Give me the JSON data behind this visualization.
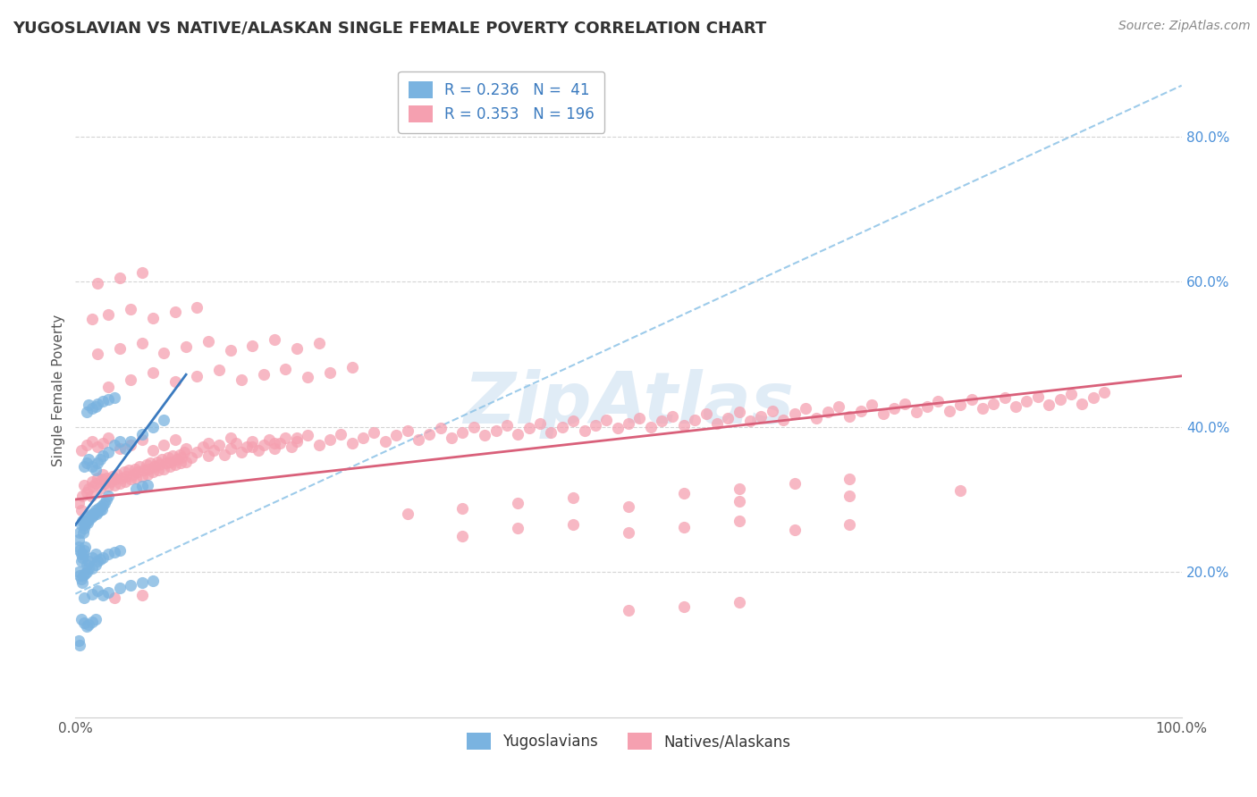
{
  "title": "YUGOSLAVIAN VS NATIVE/ALASKAN SINGLE FEMALE POVERTY CORRELATION CHART",
  "source": "Source: ZipAtlas.com",
  "ylabel": "Single Female Poverty",
  "right_ytick_vals": [
    0.2,
    0.4,
    0.6,
    0.8
  ],
  "right_ytick_labels": [
    "20.0%",
    "40.0%",
    "60.0%",
    "80.0%"
  ],
  "legend_label1": "Yugoslavians",
  "legend_label2": "Natives/Alaskans",
  "blue_color": "#7ab3e0",
  "pink_color": "#f5a0b0",
  "blue_scatter": [
    [
      0.003,
      0.245
    ],
    [
      0.004,
      0.255
    ],
    [
      0.005,
      0.265
    ],
    [
      0.006,
      0.27
    ],
    [
      0.007,
      0.255
    ],
    [
      0.008,
      0.26
    ],
    [
      0.008,
      0.27
    ],
    [
      0.009,
      0.265
    ],
    [
      0.01,
      0.27
    ],
    [
      0.01,
      0.275
    ],
    [
      0.011,
      0.268
    ],
    [
      0.012,
      0.272
    ],
    [
      0.013,
      0.278
    ],
    [
      0.014,
      0.275
    ],
    [
      0.015,
      0.28
    ],
    [
      0.016,
      0.278
    ],
    [
      0.017,
      0.282
    ],
    [
      0.018,
      0.285
    ],
    [
      0.019,
      0.28
    ],
    [
      0.02,
      0.283
    ],
    [
      0.021,
      0.288
    ],
    [
      0.022,
      0.285
    ],
    [
      0.023,
      0.29
    ],
    [
      0.024,
      0.287
    ],
    [
      0.025,
      0.292
    ],
    [
      0.026,
      0.295
    ],
    [
      0.028,
      0.3
    ],
    [
      0.03,
      0.305
    ],
    [
      0.003,
      0.235
    ],
    [
      0.004,
      0.23
    ],
    [
      0.005,
      0.225
    ],
    [
      0.005,
      0.215
    ],
    [
      0.006,
      0.22
    ],
    [
      0.007,
      0.225
    ],
    [
      0.008,
      0.23
    ],
    [
      0.009,
      0.235
    ],
    [
      0.01,
      0.21
    ],
    [
      0.012,
      0.215
    ],
    [
      0.015,
      0.22
    ],
    [
      0.018,
      0.225
    ],
    [
      0.003,
      0.2
    ],
    [
      0.004,
      0.195
    ],
    [
      0.005,
      0.19
    ],
    [
      0.006,
      0.185
    ],
    [
      0.007,
      0.195
    ],
    [
      0.009,
      0.198
    ],
    [
      0.01,
      0.2
    ],
    [
      0.012,
      0.205
    ],
    [
      0.015,
      0.205
    ],
    [
      0.018,
      0.21
    ],
    [
      0.02,
      0.215
    ],
    [
      0.022,
      0.218
    ],
    [
      0.025,
      0.22
    ],
    [
      0.03,
      0.225
    ],
    [
      0.035,
      0.228
    ],
    [
      0.04,
      0.23
    ],
    [
      0.008,
      0.345
    ],
    [
      0.01,
      0.35
    ],
    [
      0.012,
      0.355
    ],
    [
      0.015,
      0.345
    ],
    [
      0.018,
      0.34
    ],
    [
      0.02,
      0.35
    ],
    [
      0.022,
      0.355
    ],
    [
      0.025,
      0.36
    ],
    [
      0.03,
      0.365
    ],
    [
      0.035,
      0.375
    ],
    [
      0.04,
      0.38
    ],
    [
      0.045,
      0.37
    ],
    [
      0.05,
      0.38
    ],
    [
      0.06,
      0.39
    ],
    [
      0.07,
      0.4
    ],
    [
      0.08,
      0.41
    ],
    [
      0.01,
      0.42
    ],
    [
      0.012,
      0.43
    ],
    [
      0.015,
      0.425
    ],
    [
      0.018,
      0.428
    ],
    [
      0.02,
      0.432
    ],
    [
      0.025,
      0.435
    ],
    [
      0.03,
      0.438
    ],
    [
      0.035,
      0.44
    ],
    [
      0.055,
      0.315
    ],
    [
      0.06,
      0.318
    ],
    [
      0.065,
      0.32
    ],
    [
      0.008,
      0.165
    ],
    [
      0.015,
      0.17
    ],
    [
      0.02,
      0.175
    ],
    [
      0.025,
      0.168
    ],
    [
      0.03,
      0.172
    ],
    [
      0.04,
      0.178
    ],
    [
      0.05,
      0.182
    ],
    [
      0.06,
      0.185
    ],
    [
      0.07,
      0.188
    ],
    [
      0.005,
      0.135
    ],
    [
      0.008,
      0.13
    ],
    [
      0.01,
      0.125
    ],
    [
      0.012,
      0.128
    ],
    [
      0.015,
      0.132
    ],
    [
      0.018,
      0.135
    ],
    [
      0.003,
      0.105
    ],
    [
      0.004,
      0.1
    ]
  ],
  "pink_scatter": [
    [
      0.003,
      0.295
    ],
    [
      0.005,
      0.285
    ],
    [
      0.006,
      0.305
    ],
    [
      0.008,
      0.32
    ],
    [
      0.01,
      0.31
    ],
    [
      0.012,
      0.315
    ],
    [
      0.014,
      0.305
    ],
    [
      0.015,
      0.325
    ],
    [
      0.016,
      0.318
    ],
    [
      0.018,
      0.322
    ],
    [
      0.02,
      0.33
    ],
    [
      0.022,
      0.315
    ],
    [
      0.024,
      0.328
    ],
    [
      0.025,
      0.335
    ],
    [
      0.026,
      0.322
    ],
    [
      0.028,
      0.33
    ],
    [
      0.03,
      0.318
    ],
    [
      0.032,
      0.325
    ],
    [
      0.034,
      0.332
    ],
    [
      0.035,
      0.32
    ],
    [
      0.036,
      0.328
    ],
    [
      0.038,
      0.335
    ],
    [
      0.04,
      0.322
    ],
    [
      0.042,
      0.33
    ],
    [
      0.044,
      0.338
    ],
    [
      0.045,
      0.325
    ],
    [
      0.046,
      0.332
    ],
    [
      0.048,
      0.34
    ],
    [
      0.05,
      0.328
    ],
    [
      0.052,
      0.335
    ],
    [
      0.054,
      0.342
    ],
    [
      0.055,
      0.33
    ],
    [
      0.056,
      0.338
    ],
    [
      0.058,
      0.345
    ],
    [
      0.06,
      0.332
    ],
    [
      0.062,
      0.34
    ],
    [
      0.064,
      0.348
    ],
    [
      0.065,
      0.335
    ],
    [
      0.066,
      0.342
    ],
    [
      0.068,
      0.35
    ],
    [
      0.07,
      0.338
    ],
    [
      0.072,
      0.345
    ],
    [
      0.074,
      0.352
    ],
    [
      0.075,
      0.34
    ],
    [
      0.076,
      0.348
    ],
    [
      0.078,
      0.355
    ],
    [
      0.08,
      0.342
    ],
    [
      0.082,
      0.35
    ],
    [
      0.084,
      0.358
    ],
    [
      0.085,
      0.345
    ],
    [
      0.086,
      0.352
    ],
    [
      0.088,
      0.36
    ],
    [
      0.09,
      0.348
    ],
    [
      0.092,
      0.355
    ],
    [
      0.094,
      0.362
    ],
    [
      0.095,
      0.35
    ],
    [
      0.096,
      0.358
    ],
    [
      0.098,
      0.365
    ],
    [
      0.1,
      0.352
    ],
    [
      0.105,
      0.358
    ],
    [
      0.11,
      0.365
    ],
    [
      0.115,
      0.372
    ],
    [
      0.12,
      0.36
    ],
    [
      0.125,
      0.368
    ],
    [
      0.13,
      0.375
    ],
    [
      0.135,
      0.362
    ],
    [
      0.14,
      0.37
    ],
    [
      0.145,
      0.378
    ],
    [
      0.15,
      0.365
    ],
    [
      0.155,
      0.372
    ],
    [
      0.16,
      0.38
    ],
    [
      0.165,
      0.368
    ],
    [
      0.17,
      0.375
    ],
    [
      0.175,
      0.382
    ],
    [
      0.18,
      0.37
    ],
    [
      0.185,
      0.378
    ],
    [
      0.19,
      0.385
    ],
    [
      0.195,
      0.372
    ],
    [
      0.2,
      0.38
    ],
    [
      0.21,
      0.388
    ],
    [
      0.22,
      0.375
    ],
    [
      0.23,
      0.382
    ],
    [
      0.24,
      0.39
    ],
    [
      0.25,
      0.378
    ],
    [
      0.26,
      0.385
    ],
    [
      0.27,
      0.392
    ],
    [
      0.28,
      0.38
    ],
    [
      0.29,
      0.388
    ],
    [
      0.3,
      0.395
    ],
    [
      0.31,
      0.382
    ],
    [
      0.32,
      0.39
    ],
    [
      0.33,
      0.398
    ],
    [
      0.34,
      0.385
    ],
    [
      0.35,
      0.392
    ],
    [
      0.36,
      0.4
    ],
    [
      0.37,
      0.388
    ],
    [
      0.38,
      0.395
    ],
    [
      0.39,
      0.402
    ],
    [
      0.4,
      0.39
    ],
    [
      0.41,
      0.398
    ],
    [
      0.42,
      0.405
    ],
    [
      0.43,
      0.392
    ],
    [
      0.44,
      0.4
    ],
    [
      0.45,
      0.408
    ],
    [
      0.46,
      0.395
    ],
    [
      0.47,
      0.402
    ],
    [
      0.48,
      0.41
    ],
    [
      0.49,
      0.398
    ],
    [
      0.5,
      0.405
    ],
    [
      0.51,
      0.412
    ],
    [
      0.52,
      0.4
    ],
    [
      0.53,
      0.408
    ],
    [
      0.54,
      0.415
    ],
    [
      0.55,
      0.402
    ],
    [
      0.56,
      0.41
    ],
    [
      0.57,
      0.418
    ],
    [
      0.58,
      0.405
    ],
    [
      0.59,
      0.412
    ],
    [
      0.6,
      0.42
    ],
    [
      0.61,
      0.408
    ],
    [
      0.62,
      0.415
    ],
    [
      0.63,
      0.422
    ],
    [
      0.64,
      0.41
    ],
    [
      0.65,
      0.418
    ],
    [
      0.66,
      0.425
    ],
    [
      0.67,
      0.412
    ],
    [
      0.68,
      0.42
    ],
    [
      0.69,
      0.428
    ],
    [
      0.7,
      0.415
    ],
    [
      0.71,
      0.422
    ],
    [
      0.72,
      0.43
    ],
    [
      0.73,
      0.418
    ],
    [
      0.74,
      0.425
    ],
    [
      0.75,
      0.432
    ],
    [
      0.76,
      0.42
    ],
    [
      0.77,
      0.428
    ],
    [
      0.78,
      0.435
    ],
    [
      0.79,
      0.422
    ],
    [
      0.8,
      0.43
    ],
    [
      0.81,
      0.438
    ],
    [
      0.82,
      0.425
    ],
    [
      0.83,
      0.432
    ],
    [
      0.84,
      0.44
    ],
    [
      0.85,
      0.428
    ],
    [
      0.86,
      0.435
    ],
    [
      0.87,
      0.442
    ],
    [
      0.88,
      0.43
    ],
    [
      0.89,
      0.438
    ],
    [
      0.9,
      0.445
    ],
    [
      0.91,
      0.432
    ],
    [
      0.92,
      0.44
    ],
    [
      0.93,
      0.448
    ],
    [
      0.005,
      0.368
    ],
    [
      0.01,
      0.375
    ],
    [
      0.015,
      0.38
    ],
    [
      0.02,
      0.372
    ],
    [
      0.025,
      0.378
    ],
    [
      0.03,
      0.385
    ],
    [
      0.04,
      0.37
    ],
    [
      0.05,
      0.375
    ],
    [
      0.06,
      0.382
    ],
    [
      0.07,
      0.368
    ],
    [
      0.08,
      0.375
    ],
    [
      0.09,
      0.382
    ],
    [
      0.1,
      0.37
    ],
    [
      0.12,
      0.378
    ],
    [
      0.14,
      0.385
    ],
    [
      0.16,
      0.372
    ],
    [
      0.18,
      0.378
    ],
    [
      0.2,
      0.385
    ],
    [
      0.03,
      0.455
    ],
    [
      0.05,
      0.465
    ],
    [
      0.07,
      0.475
    ],
    [
      0.09,
      0.462
    ],
    [
      0.11,
      0.47
    ],
    [
      0.13,
      0.478
    ],
    [
      0.15,
      0.465
    ],
    [
      0.17,
      0.472
    ],
    [
      0.19,
      0.48
    ],
    [
      0.21,
      0.468
    ],
    [
      0.23,
      0.475
    ],
    [
      0.25,
      0.482
    ],
    [
      0.02,
      0.5
    ],
    [
      0.04,
      0.508
    ],
    [
      0.06,
      0.515
    ],
    [
      0.08,
      0.502
    ],
    [
      0.1,
      0.51
    ],
    [
      0.12,
      0.518
    ],
    [
      0.14,
      0.505
    ],
    [
      0.16,
      0.512
    ],
    [
      0.18,
      0.52
    ],
    [
      0.2,
      0.508
    ],
    [
      0.22,
      0.515
    ],
    [
      0.015,
      0.548
    ],
    [
      0.03,
      0.555
    ],
    [
      0.05,
      0.562
    ],
    [
      0.07,
      0.55
    ],
    [
      0.09,
      0.558
    ],
    [
      0.11,
      0.565
    ],
    [
      0.02,
      0.598
    ],
    [
      0.04,
      0.605
    ],
    [
      0.06,
      0.612
    ],
    [
      0.35,
      0.25
    ],
    [
      0.4,
      0.26
    ],
    [
      0.45,
      0.265
    ],
    [
      0.5,
      0.255
    ],
    [
      0.55,
      0.262
    ],
    [
      0.6,
      0.27
    ],
    [
      0.65,
      0.258
    ],
    [
      0.7,
      0.265
    ],
    [
      0.55,
      0.308
    ],
    [
      0.6,
      0.315
    ],
    [
      0.65,
      0.322
    ],
    [
      0.7,
      0.328
    ],
    [
      0.3,
      0.28
    ],
    [
      0.35,
      0.288
    ],
    [
      0.4,
      0.295
    ],
    [
      0.45,
      0.302
    ],
    [
      0.5,
      0.29
    ],
    [
      0.6,
      0.298
    ],
    [
      0.7,
      0.305
    ],
    [
      0.8,
      0.312
    ],
    [
      0.035,
      0.165
    ],
    [
      0.06,
      0.168
    ],
    [
      0.5,
      0.148
    ],
    [
      0.55,
      0.152
    ],
    [
      0.6,
      0.158
    ]
  ],
  "xlim": [
    0.0,
    1.0
  ],
  "ylim": [
    0.0,
    0.9
  ],
  "blue_trend_x": [
    0.0,
    0.1
  ],
  "blue_trend_y": [
    0.265,
    0.472
  ],
  "pink_trend_x": [
    0.0,
    1.0
  ],
  "pink_trend_y": [
    0.3,
    0.47
  ],
  "dashed_trend_x": [
    0.0,
    1.0
  ],
  "dashed_trend_y": [
    0.17,
    0.87
  ],
  "dashed_color": "#93c6e8",
  "watermark": "ZipAtlas",
  "bg_color": "#ffffff",
  "grid_color": "#d0d0d0",
  "title_fontsize": 13,
  "source_fontsize": 10,
  "tick_fontsize": 11,
  "ylabel_fontsize": 11,
  "legend_fontsize": 12
}
